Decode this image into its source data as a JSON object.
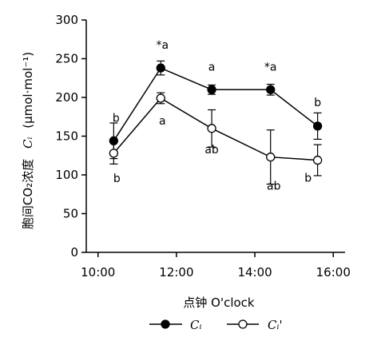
{
  "chart_data": {
    "type": "line",
    "x": [
      "10:00",
      "12:00",
      "14:00",
      "16:00"
    ],
    "x_values": [
      10.4,
      11.6,
      12.9,
      14.4,
      15.6
    ],
    "xlim": [
      9.7,
      16.3
    ],
    "ylim": [
      0,
      300
    ],
    "yticks": [
      0,
      50,
      100,
      150,
      200,
      250,
      300
    ],
    "xlabel": "点钟 O'clock",
    "ylabel": "胞间CO₂浓度  Cᵢ (μmol·mol⁻¹)",
    "ylabel_main": "胞间CO₂浓度",
    "ylabel_sym": "Cᵢ",
    "ylabel_unit": "(μmol·mol⁻¹)",
    "series": [
      {
        "name": "Cᵢ",
        "marker": "filled",
        "values": [
          144,
          238,
          210,
          210,
          163
        ],
        "errors": [
          23,
          9,
          6,
          7,
          17
        ],
        "labels": [
          "b",
          "*a",
          "a",
          "*a",
          "b"
        ]
      },
      {
        "name": "Cᵢ'",
        "marker": "open",
        "values": [
          128,
          199,
          160,
          123,
          119
        ],
        "errors": [
          14,
          7,
          24,
          35,
          20
        ],
        "labels": [
          "b",
          "a",
          "ab",
          "ab",
          "b"
        ]
      }
    ],
    "legend_position": "bottom",
    "grid": false
  }
}
